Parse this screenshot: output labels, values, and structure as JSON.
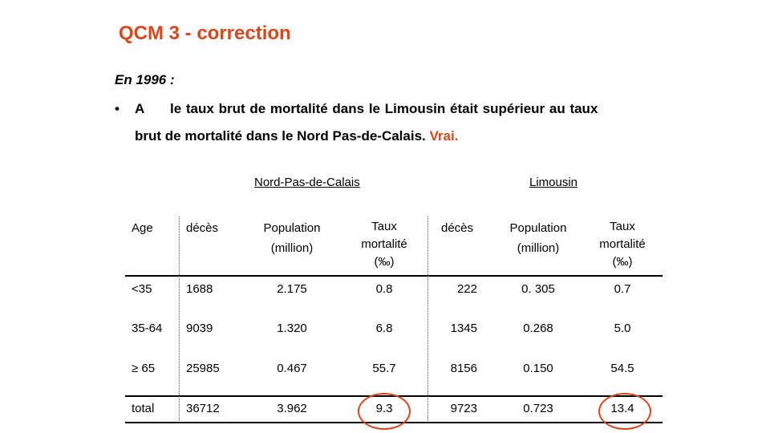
{
  "slide": {
    "title": "QCM 3 - correction",
    "subtitle": "En 1996 :",
    "bullet": "•",
    "question_letter": "A",
    "question_line1": "le taux brut de mortalité dans le Limousin était supérieur au taux",
    "question_line2": "brut de mortalité dans le Nord Pas-de-Calais.",
    "answer": "Vrai."
  },
  "table": {
    "groups": [
      "Nord-Pas-de-Calais",
      "Limousin"
    ],
    "headers": {
      "age": "Age",
      "deces": "décès",
      "population_l1": "Population",
      "population_l2": "(million)",
      "taux_l1": "Taux",
      "taux_l2": "mortalité",
      "taux_l3": "(‰)"
    },
    "rows": [
      {
        "age": "<35",
        "npc_deces": "1688",
        "npc_pop": "2.175",
        "npc_taux": "0.8",
        "lim_deces": "222",
        "lim_pop": "0. 305",
        "lim_taux": "0.7"
      },
      {
        "age": "35-64",
        "npc_deces": "9039",
        "npc_pop": "1.320",
        "npc_taux": "6.8",
        "lim_deces": "1345",
        "lim_pop": "0.268",
        "lim_taux": "5.0"
      },
      {
        "age": "≥ 65",
        "npc_deces": "25985",
        "npc_pop": "0.467",
        "npc_taux": "55.7",
        "lim_deces": "8156",
        "lim_pop": "0.150",
        "lim_taux": "54.5"
      },
      {
        "age": "total",
        "npc_deces": "36712",
        "npc_pop": "3.962",
        "npc_taux": "9.3",
        "lim_deces": "9723",
        "lim_pop": "0.723",
        "lim_taux": "13.4"
      }
    ]
  },
  "colors": {
    "accent": "#d9461a"
  }
}
